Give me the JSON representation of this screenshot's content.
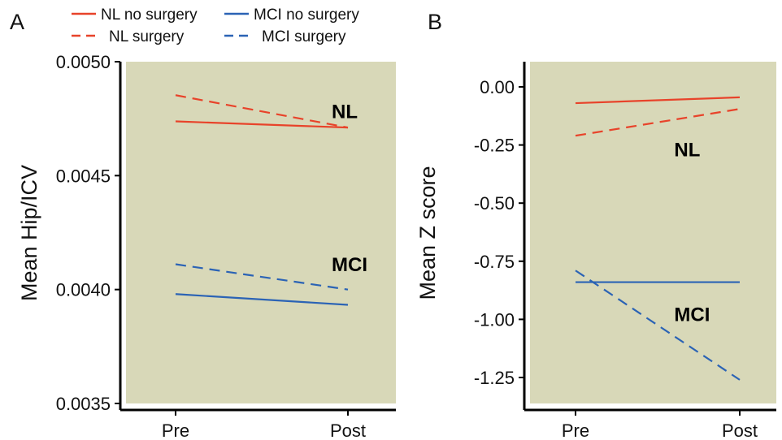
{
  "legend": [
    {
      "label": "NL no surgery",
      "color": "#e8432a",
      "dash": false
    },
    {
      "label": "MCI no surgery",
      "color": "#2b63b5",
      "dash": false
    },
    {
      "label": "NL surgery",
      "color": "#e8432a",
      "dash": true
    },
    {
      "label": "MCI surgery",
      "color": "#2b63b5",
      "dash": true
    }
  ],
  "colors": {
    "panel_bg": "#d8d8b8",
    "nl": "#e8432a",
    "mci": "#2b63b5"
  },
  "chart_data": [
    {
      "type": "line",
      "panel_label": "A",
      "ylabel": "Mean Hip/ICV",
      "xlabel": "",
      "categories": [
        "Pre",
        "Post"
      ],
      "ylim": [
        0.0035,
        0.005
      ],
      "yticks": [
        0.0035,
        0.004,
        0.0045,
        0.005
      ],
      "ytick_labels": [
        "0.0035",
        "0.0040",
        "0.0045",
        "0.0050"
      ],
      "grid": false,
      "group_labels": [
        {
          "text": "NL",
          "near": [
            1,
            0.00478
          ]
        },
        {
          "text": "MCI",
          "near": [
            1,
            0.00411
          ]
        }
      ],
      "series": [
        {
          "name": "NL no surgery",
          "values": [
            0.004738,
            0.004711
          ],
          "color": "#e8432a",
          "dash": false
        },
        {
          "name": "NL surgery",
          "values": [
            0.004853,
            0.004711
          ],
          "color": "#e8432a",
          "dash": true
        },
        {
          "name": "MCI no surgery",
          "values": [
            0.00398,
            0.003933
          ],
          "color": "#2b63b5",
          "dash": false
        },
        {
          "name": "MCI surgery",
          "values": [
            0.004111,
            0.004
          ],
          "color": "#2b63b5",
          "dash": true
        }
      ]
    },
    {
      "type": "line",
      "panel_label": "B",
      "ylabel": "Mean Z score",
      "xlabel": "",
      "categories": [
        "Pre",
        "Post"
      ],
      "ylim": [
        -1.38,
        0.12
      ],
      "yticks": [
        0,
        -0.25,
        -0.5,
        -0.75,
        -1,
        -1.25
      ],
      "ytick_labels": [
        "0.00",
        "-0.25",
        "-0.50",
        "-0.75",
        "-1.00",
        "-1.25"
      ],
      "grid": false,
      "group_labels": [
        {
          "text": "NL",
          "near": [
            0.7,
            -0.27
          ]
        },
        {
          "text": "MCI",
          "near": [
            0.7,
            -0.98
          ]
        }
      ],
      "series": [
        {
          "name": "NL no surgery",
          "values": [
            -0.07,
            -0.045
          ],
          "color": "#e8432a",
          "dash": false
        },
        {
          "name": "NL surgery",
          "values": [
            -0.21,
            -0.095
          ],
          "color": "#e8432a",
          "dash": true
        },
        {
          "name": "MCI no surgery",
          "values": [
            -0.84,
            -0.84
          ],
          "color": "#2b63b5",
          "dash": false
        },
        {
          "name": "MCI surgery",
          "values": [
            -0.79,
            -1.26
          ],
          "color": "#2b63b5",
          "dash": true
        }
      ]
    }
  ]
}
